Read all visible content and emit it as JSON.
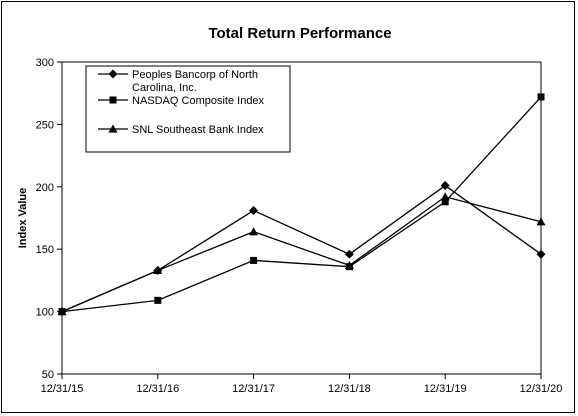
{
  "chart_data": {
    "type": "line",
    "title": "Total Return Performance",
    "xlabel": "",
    "ylabel": "Index Value",
    "ylim": [
      50,
      300
    ],
    "yticks": [
      50,
      100,
      150,
      200,
      250,
      300
    ],
    "categories": [
      "12/31/15",
      "12/31/16",
      "12/31/17",
      "12/31/18",
      "12/31/19",
      "12/31/20"
    ],
    "grid": false,
    "legend_position": "top-left",
    "series": [
      {
        "name": "Peoples Bancorp of North Carolina, Inc.",
        "legend_lines": [
          "Peoples Bancorp of North",
          "Carolina, Inc."
        ],
        "marker": "diamond",
        "values": [
          100,
          133,
          181,
          146,
          201,
          146
        ]
      },
      {
        "name": "NASDAQ Composite Index",
        "legend_lines": [
          "NASDAQ Composite Index"
        ],
        "marker": "square",
        "values": [
          100,
          109,
          141,
          136,
          188,
          272
        ]
      },
      {
        "name": "SNL Southeast Bank Index",
        "legend_lines": [
          "SNL Southeast Bank Index"
        ],
        "marker": "triangle",
        "values": [
          100,
          133,
          164,
          137,
          192,
          172
        ]
      }
    ],
    "colors": {
      "line": "#000000",
      "marker": "#000000"
    }
  }
}
